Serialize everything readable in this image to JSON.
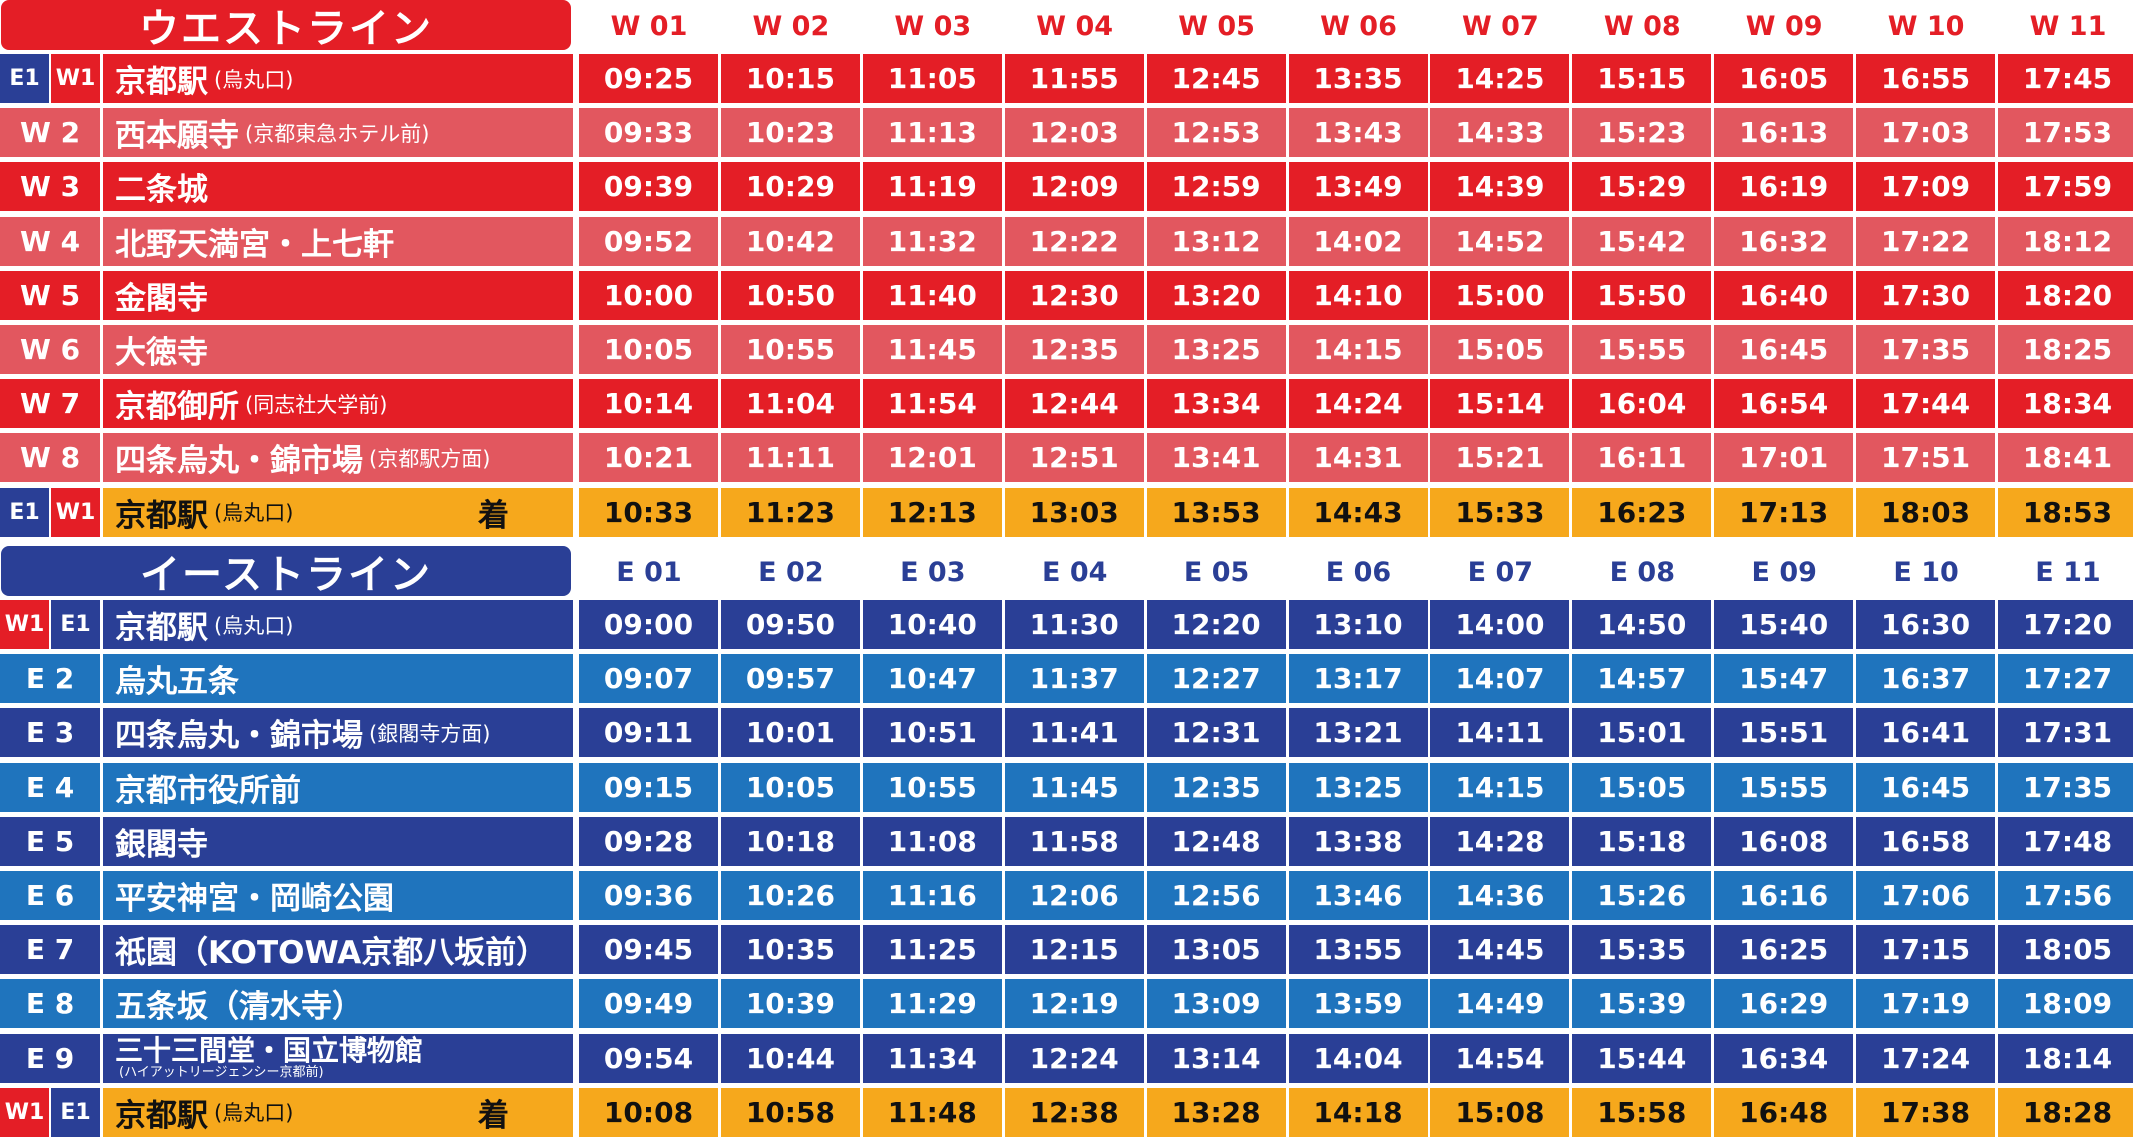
{
  "colors": {
    "west_dark": "#e41e26",
    "west_light": "#e2575f",
    "east_dark": "#2a3f96",
    "east_light": "#1f74bd",
    "arrival": "#f6a81c",
    "west_header_text": "#e41e26",
    "east_header_text": "#2a3f96"
  },
  "west": {
    "title": "ウエストライン",
    "trips": [
      "W 01",
      "W 02",
      "W 03",
      "W 04",
      "W 05",
      "W 06",
      "W 07",
      "W 08",
      "W 09",
      "W 10",
      "W 11"
    ],
    "rows": [
      {
        "codes": [
          "E1",
          "W1"
        ],
        "name": "京都駅",
        "sub": "(烏丸口)",
        "arrive": "",
        "times": [
          "09:25",
          "10:15",
          "11:05",
          "11:55",
          "12:45",
          "13:35",
          "14:25",
          "15:15",
          "16:05",
          "16:55",
          "17:45"
        ]
      },
      {
        "codes": [
          "W 2"
        ],
        "name": "西本願寺",
        "sub": "(京都東急ホテル前)",
        "arrive": "",
        "times": [
          "09:33",
          "10:23",
          "11:13",
          "12:03",
          "12:53",
          "13:43",
          "14:33",
          "15:23",
          "16:13",
          "17:03",
          "17:53"
        ]
      },
      {
        "codes": [
          "W 3"
        ],
        "name": "二条城",
        "sub": "",
        "arrive": "",
        "times": [
          "09:39",
          "10:29",
          "11:19",
          "12:09",
          "12:59",
          "13:49",
          "14:39",
          "15:29",
          "16:19",
          "17:09",
          "17:59"
        ]
      },
      {
        "codes": [
          "W 4"
        ],
        "name": "北野天満宮・上七軒",
        "sub": "",
        "arrive": "",
        "times": [
          "09:52",
          "10:42",
          "11:32",
          "12:22",
          "13:12",
          "14:02",
          "14:52",
          "15:42",
          "16:32",
          "17:22",
          "18:12"
        ]
      },
      {
        "codes": [
          "W 5"
        ],
        "name": "金閣寺",
        "sub": "",
        "arrive": "",
        "times": [
          "10:00",
          "10:50",
          "11:40",
          "12:30",
          "13:20",
          "14:10",
          "15:00",
          "15:50",
          "16:40",
          "17:30",
          "18:20"
        ]
      },
      {
        "codes": [
          "W 6"
        ],
        "name": "大徳寺",
        "sub": "",
        "arrive": "",
        "times": [
          "10:05",
          "10:55",
          "11:45",
          "12:35",
          "13:25",
          "14:15",
          "15:05",
          "15:55",
          "16:45",
          "17:35",
          "18:25"
        ]
      },
      {
        "codes": [
          "W 7"
        ],
        "name": "京都御所",
        "sub": "(同志社大学前)",
        "arrive": "",
        "times": [
          "10:14",
          "11:04",
          "11:54",
          "12:44",
          "13:34",
          "14:24",
          "15:14",
          "16:04",
          "16:54",
          "17:44",
          "18:34"
        ]
      },
      {
        "codes": [
          "W 8"
        ],
        "name": "四条烏丸・錦市場",
        "sub": "(京都駅方面)",
        "arrive": "",
        "times": [
          "10:21",
          "11:11",
          "12:01",
          "12:51",
          "13:41",
          "14:31",
          "15:21",
          "16:11",
          "17:01",
          "17:51",
          "18:41"
        ]
      },
      {
        "codes": [
          "E1",
          "W1"
        ],
        "name": "京都駅",
        "sub": "(烏丸口)",
        "arrive": "着",
        "times": [
          "10:33",
          "11:23",
          "12:13",
          "13:03",
          "13:53",
          "14:43",
          "15:33",
          "16:23",
          "17:13",
          "18:03",
          "18:53"
        ]
      }
    ]
  },
  "east": {
    "title": "イーストライン",
    "trips": [
      "E 01",
      "E 02",
      "E 03",
      "E 04",
      "E 05",
      "E 06",
      "E 07",
      "E 08",
      "E 09",
      "E 10",
      "E 11"
    ],
    "rows": [
      {
        "codes": [
          "W1",
          "E1"
        ],
        "name": "京都駅",
        "sub": "(烏丸口)",
        "arrive": "",
        "times": [
          "09:00",
          "09:50",
          "10:40",
          "11:30",
          "12:20",
          "13:10",
          "14:00",
          "14:50",
          "15:40",
          "16:30",
          "17:20"
        ]
      },
      {
        "codes": [
          "E 2"
        ],
        "name": "烏丸五条",
        "sub": "",
        "arrive": "",
        "times": [
          "09:07",
          "09:57",
          "10:47",
          "11:37",
          "12:27",
          "13:17",
          "14:07",
          "14:57",
          "15:47",
          "16:37",
          "17:27"
        ]
      },
      {
        "codes": [
          "E 3"
        ],
        "name": "四条烏丸・錦市場",
        "sub": "(銀閣寺方面)",
        "arrive": "",
        "times": [
          "09:11",
          "10:01",
          "10:51",
          "11:41",
          "12:31",
          "13:21",
          "14:11",
          "15:01",
          "15:51",
          "16:41",
          "17:31"
        ]
      },
      {
        "codes": [
          "E 4"
        ],
        "name": "京都市役所前",
        "sub": "",
        "arrive": "",
        "times": [
          "09:15",
          "10:05",
          "10:55",
          "11:45",
          "12:35",
          "13:25",
          "14:15",
          "15:05",
          "15:55",
          "16:45",
          "17:35"
        ]
      },
      {
        "codes": [
          "E 5"
        ],
        "name": "銀閣寺",
        "sub": "",
        "arrive": "",
        "times": [
          "09:28",
          "10:18",
          "11:08",
          "11:58",
          "12:48",
          "13:38",
          "14:28",
          "15:18",
          "16:08",
          "16:58",
          "17:48"
        ]
      },
      {
        "codes": [
          "E 6"
        ],
        "name": "平安神宮・岡崎公園",
        "sub": "",
        "arrive": "",
        "times": [
          "09:36",
          "10:26",
          "11:16",
          "12:06",
          "12:56",
          "13:46",
          "14:36",
          "15:26",
          "16:16",
          "17:06",
          "17:56"
        ]
      },
      {
        "codes": [
          "E 7"
        ],
        "name": "祇園（KOTOWA京都八坂前）",
        "sub": "",
        "arrive": "",
        "times": [
          "09:45",
          "10:35",
          "11:25",
          "12:15",
          "13:05",
          "13:55",
          "14:45",
          "15:35",
          "16:25",
          "17:15",
          "18:05"
        ]
      },
      {
        "codes": [
          "E 8"
        ],
        "name": "五条坂（清水寺）",
        "sub": "",
        "arrive": "",
        "times": [
          "09:49",
          "10:39",
          "11:29",
          "12:19",
          "13:09",
          "13:59",
          "14:49",
          "15:39",
          "16:29",
          "17:19",
          "18:09"
        ]
      },
      {
        "codes": [
          "E 9"
        ],
        "name": "三十三間堂・国立博物館",
        "sub": "(ハイアットリージェンシー京都前)",
        "arrive": "",
        "times": [
          "09:54",
          "10:44",
          "11:34",
          "12:24",
          "13:14",
          "14:04",
          "14:54",
          "15:44",
          "16:34",
          "17:24",
          "18:14"
        ]
      },
      {
        "codes": [
          "W1",
          "E1"
        ],
        "name": "京都駅",
        "sub": "(烏丸口)",
        "arrive": "着",
        "times": [
          "10:08",
          "10:58",
          "11:48",
          "12:38",
          "13:28",
          "14:18",
          "15:08",
          "15:58",
          "16:48",
          "17:38",
          "18:28"
        ]
      }
    ]
  }
}
